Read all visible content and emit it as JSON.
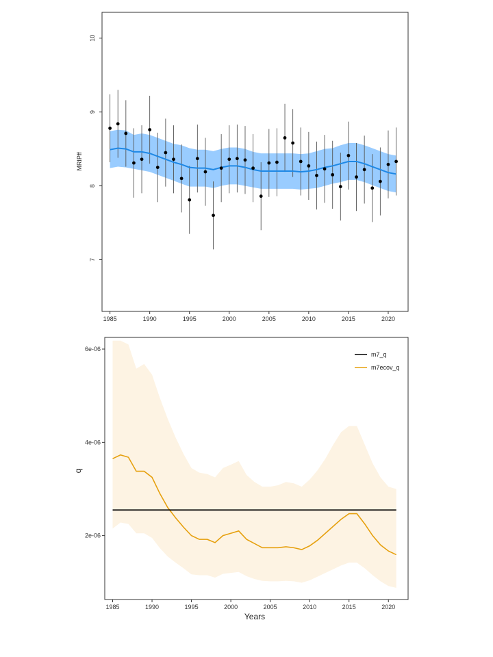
{
  "chart_data": [
    {
      "type": "line",
      "ylabel": "MRIPff",
      "xlabel": "",
      "xlim": [
        1984,
        2022.5
      ],
      "ylim": [
        6.3,
        10.35
      ],
      "x_ticks": [
        1985,
        1990,
        1995,
        2000,
        2005,
        2010,
        2015,
        2020
      ],
      "y_ticks": [
        7,
        8,
        9,
        10
      ],
      "colors": {
        "band": "#99ccff",
        "line": "#1e88e5",
        "points": "#000000",
        "errorbars": "#555555"
      },
      "fit": {
        "x": [
          1985,
          1986,
          1987,
          1988,
          1989,
          1990,
          1991,
          1992,
          1993,
          1994,
          1995,
          1996,
          1997,
          1998,
          1999,
          2000,
          2001,
          2002,
          2003,
          2004,
          2005,
          2006,
          2007,
          2008,
          2009,
          2010,
          2011,
          2012,
          2013,
          2014,
          2015,
          2016,
          2017,
          2018,
          2019,
          2020,
          2021
        ],
        "y": [
          8.49,
          8.51,
          8.5,
          8.46,
          8.46,
          8.44,
          8.4,
          8.36,
          8.32,
          8.29,
          8.25,
          8.24,
          8.24,
          8.22,
          8.25,
          8.27,
          8.27,
          8.25,
          8.22,
          8.2,
          8.2,
          8.2,
          8.2,
          8.2,
          8.19,
          8.2,
          8.22,
          8.25,
          8.27,
          8.3,
          8.33,
          8.33,
          8.3,
          8.26,
          8.22,
          8.18,
          8.16
        ],
        "lower": [
          8.24,
          8.26,
          8.25,
          8.23,
          8.21,
          8.19,
          8.15,
          8.11,
          8.07,
          8.03,
          7.99,
          7.99,
          7.99,
          7.97,
          8.0,
          8.02,
          8.02,
          8.0,
          7.98,
          7.96,
          7.96,
          7.96,
          7.96,
          7.96,
          7.95,
          7.96,
          7.97,
          8.0,
          8.03,
          8.05,
          8.08,
          8.08,
          8.05,
          8.01,
          7.97,
          7.93,
          7.91
        ],
        "upper": [
          8.74,
          8.76,
          8.75,
          8.69,
          8.71,
          8.69,
          8.65,
          8.61,
          8.57,
          8.55,
          8.51,
          8.49,
          8.49,
          8.47,
          8.5,
          8.52,
          8.52,
          8.5,
          8.46,
          8.44,
          8.44,
          8.44,
          8.44,
          8.44,
          8.43,
          8.44,
          8.47,
          8.5,
          8.51,
          8.55,
          8.58,
          8.58,
          8.55,
          8.51,
          8.47,
          8.43,
          8.41
        ]
      },
      "observations": {
        "x": [
          1985,
          1986,
          1987,
          1988,
          1989,
          1990,
          1991,
          1992,
          1993,
          1994,
          1995,
          1996,
          1997,
          1998,
          1999,
          2000,
          2001,
          2002,
          2003,
          2004,
          2005,
          2006,
          2007,
          2008,
          2009,
          2010,
          2011,
          2012,
          2013,
          2014,
          2015,
          2016,
          2017,
          2018,
          2019,
          2020,
          2021
        ],
        "y": [
          8.78,
          8.84,
          8.71,
          8.31,
          8.36,
          8.76,
          8.25,
          8.45,
          8.36,
          8.1,
          7.81,
          8.37,
          8.19,
          7.6,
          8.24,
          8.36,
          8.37,
          8.35,
          8.24,
          7.86,
          8.31,
          8.32,
          8.65,
          8.58,
          8.33,
          8.27,
          8.14,
          8.23,
          8.15,
          7.99,
          8.41,
          8.12,
          8.22,
          7.97,
          8.06,
          8.29,
          8.33
        ],
        "lower": [
          8.32,
          8.38,
          8.26,
          7.84,
          7.9,
          8.3,
          7.78,
          7.99,
          7.9,
          7.64,
          7.35,
          7.91,
          7.73,
          7.14,
          7.78,
          7.9,
          7.91,
          7.89,
          7.78,
          7.4,
          7.85,
          7.86,
          8.19,
          8.12,
          7.87,
          7.81,
          7.68,
          7.77,
          7.69,
          7.53,
          7.95,
          7.66,
          7.76,
          7.51,
          7.6,
          7.83,
          7.87
        ],
        "upper": [
          9.24,
          9.3,
          9.16,
          8.78,
          8.82,
          9.22,
          8.72,
          8.91,
          8.82,
          8.56,
          8.27,
          8.83,
          8.65,
          8.06,
          8.7,
          8.82,
          8.83,
          8.81,
          8.7,
          8.32,
          8.77,
          8.78,
          9.11,
          9.04,
          8.79,
          8.73,
          8.6,
          8.69,
          8.61,
          8.45,
          8.87,
          8.58,
          8.68,
          8.43,
          8.52,
          8.75,
          8.79
        ]
      }
    },
    {
      "type": "line",
      "xlabel": "Years",
      "ylabel": "q",
      "xlim": [
        1984,
        2022.5
      ],
      "ylim": [
        6.3e-07,
        6.25e-06
      ],
      "x_ticks": [
        1985,
        1990,
        1995,
        2000,
        2005,
        2010,
        2015,
        2020
      ],
      "y_ticks": [
        2e-06,
        4e-06,
        6e-06
      ],
      "y_tick_labels": [
        "2e-06",
        "4e-06",
        "6e-06"
      ],
      "legend": "top-right",
      "series": [
        {
          "name": "m7_q",
          "color": "#000000",
          "x": [
            1985,
            2021
          ],
          "values": [
            2.55e-06,
            2.55e-06
          ]
        },
        {
          "name": "m7ecov_q",
          "color": "#e6a00e",
          "band_color": "#fdf3e3",
          "x": [
            1985,
            1986,
            1987,
            1988,
            1989,
            1990,
            1991,
            1992,
            1993,
            1994,
            1995,
            1996,
            1997,
            1998,
            1999,
            2000,
            2001,
            2002,
            2003,
            2004,
            2005,
            2006,
            2007,
            2008,
            2009,
            2010,
            2011,
            2012,
            2013,
            2014,
            2015,
            2016,
            2017,
            2018,
            2019,
            2020,
            2021
          ],
          "values": [
            3.65e-06,
            3.73e-06,
            3.68e-06,
            3.38e-06,
            3.38e-06,
            3.25e-06,
            2.9e-06,
            2.6e-06,
            2.38e-06,
            2.18e-06,
            2e-06,
            1.92e-06,
            1.92e-06,
            1.85e-06,
            2e-06,
            2.05e-06,
            2.1e-06,
            1.92e-06,
            1.83e-06,
            1.74e-06,
            1.74e-06,
            1.74e-06,
            1.76e-06,
            1.74e-06,
            1.7e-06,
            1.78e-06,
            1.9e-06,
            2.05e-06,
            2.2e-06,
            2.35e-06,
            2.47e-06,
            2.47e-06,
            2.25e-06,
            2e-06,
            1.8e-06,
            1.67e-06,
            1.59e-06
          ],
          "lower": [
            2.15e-06,
            2.28e-06,
            2.25e-06,
            2.05e-06,
            2.05e-06,
            1.95e-06,
            1.73e-06,
            1.55e-06,
            1.42e-06,
            1.3e-06,
            1.17e-06,
            1.15e-06,
            1.15e-06,
            1.1e-06,
            1.18e-06,
            1.2e-06,
            1.22e-06,
            1.13e-06,
            1.07e-06,
            1.03e-06,
            1.02e-06,
            1.02e-06,
            1.03e-06,
            1.02e-06,
            9.9e-07,
            1.04e-06,
            1.12e-06,
            1.2e-06,
            1.28e-06,
            1.36e-06,
            1.42e-06,
            1.42e-06,
            1.3e-06,
            1.15e-06,
            1.02e-06,
            9.2e-07,
            8.8e-07
          ],
          "upper": [
            6.18e-06,
            6.18e-06,
            6.1e-06,
            5.58e-06,
            5.68e-06,
            5.45e-06,
            4.95e-06,
            4.5e-06,
            4.1e-06,
            3.75e-06,
            3.45e-06,
            3.35e-06,
            3.32e-06,
            3.25e-06,
            3.45e-06,
            3.52e-06,
            3.6e-06,
            3.3e-06,
            3.15e-06,
            3.05e-06,
            3.05e-06,
            3.08e-06,
            3.15e-06,
            3.12e-06,
            3.05e-06,
            3.2e-06,
            3.4e-06,
            3.65e-06,
            3.95e-06,
            4.22e-06,
            4.35e-06,
            4.35e-06,
            3.95e-06,
            3.55e-06,
            3.25e-06,
            3.05e-06,
            3e-06
          ]
        }
      ]
    }
  ]
}
